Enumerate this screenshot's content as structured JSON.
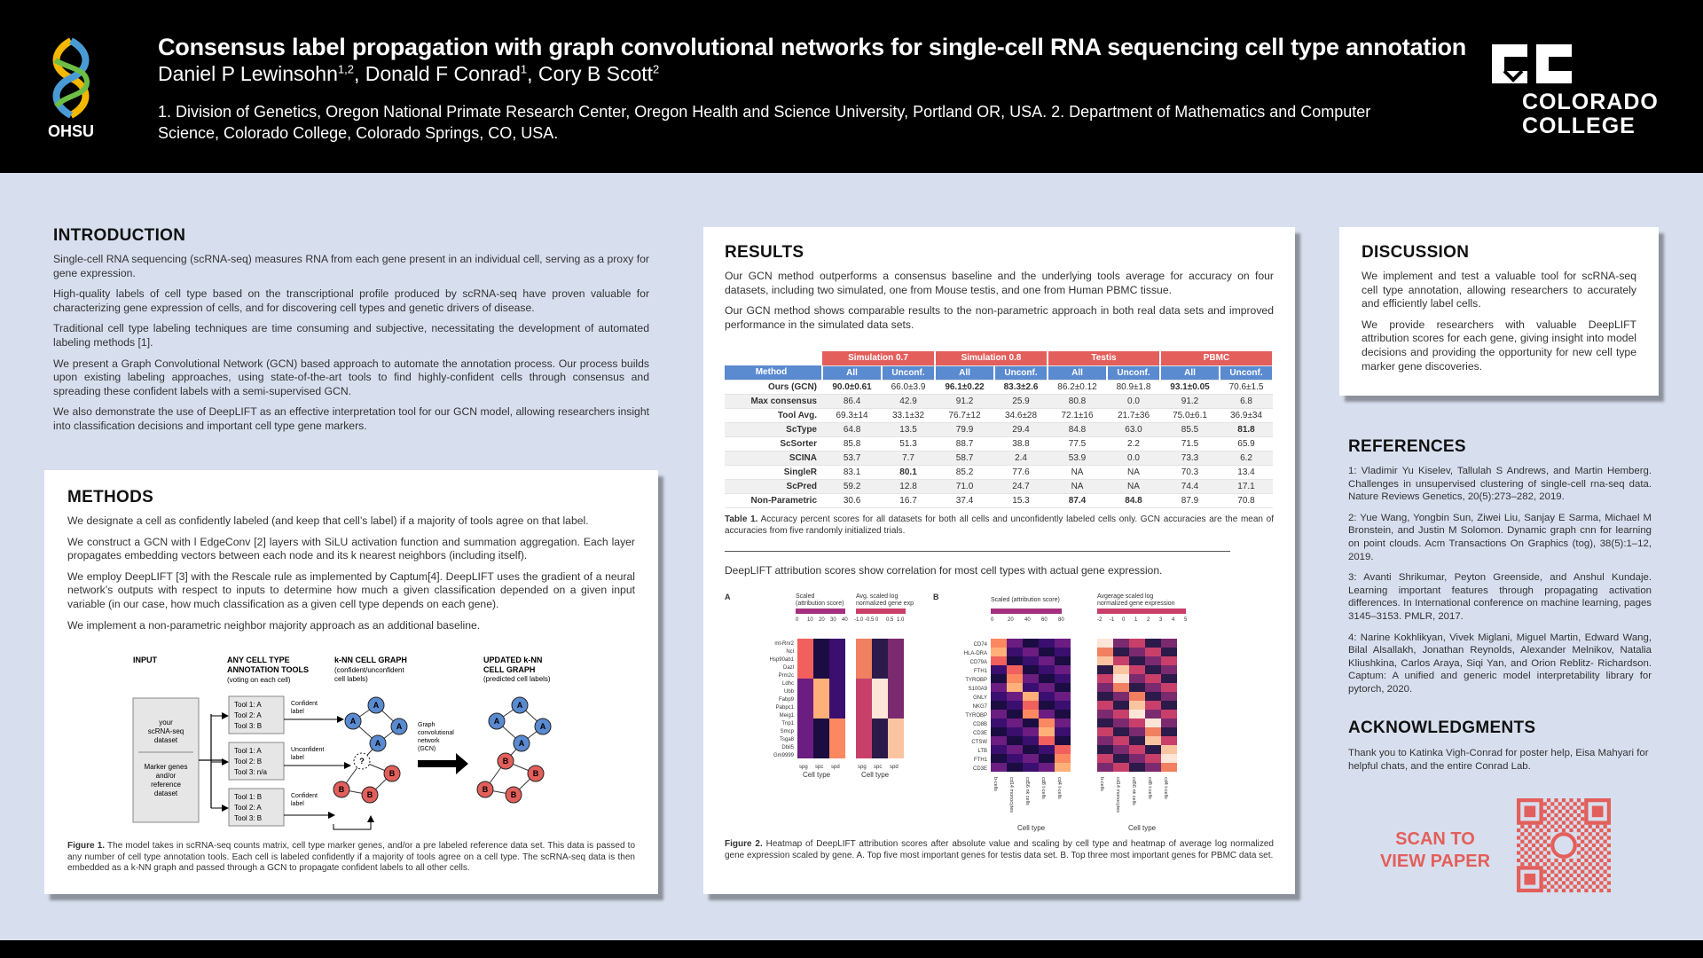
{
  "header": {
    "title": "Consensus label propagation with graph convolutional networks for single-cell RNA sequencing cell type annotation",
    "authors": [
      {
        "name": "Daniel P Lewinsohn",
        "sup": "1,2",
        "sep": ", "
      },
      {
        "name": "Donald F Conrad",
        "sup": "1",
        "sep": ", "
      },
      {
        "name": "Cory B Scott",
        "sup": "2",
        "sep": ""
      }
    ],
    "affiliations": "1. Division of Genetics, Oregon National Primate Research Center, Oregon Health and Science University, Portland OR, USA. 2. Department of Mathematics and Computer Science, Colorado College, Colorado Springs, CO, USA.",
    "ohsu_label": "OHSU",
    "cc_line1": "COLORADO",
    "cc_line2": "COLLEGE",
    "icons": [
      "ohsu-logo-icon",
      "colorado-college-logo-icon"
    ]
  },
  "introduction": {
    "title": "INTRODUCTION",
    "paragraphs": [
      "Single-cell RNA sequencing (scRNA-seq) measures RNA from each gene present in an individual cell, serving as a proxy for gene expression.",
      "High-quality labels of cell type based on the transcriptional profile produced by scRNA-seq have proven valuable for characterizing gene expression of cells, and for discovering cell types and genetic drivers of disease.",
      "Traditional cell type labeling techniques are time consuming and subjective, necessitating the development of automated labeling methods [1].",
      "We present a Graph Convolutional Network (GCN) based approach to automate the annotation process. Our process builds upon existing labeling approaches, using state-of-the-art tools to find highly-confident cells through consensus and spreading these confident labels with a semi-supervised GCN.",
      "We also demonstrate the use of DeepLIFT as an effective interpretation tool for our GCN model, allowing researchers insight into classification decisions and important cell type gene markers."
    ]
  },
  "methods": {
    "title": "METHODS",
    "paragraphs": [
      "We designate a cell as confidently labeled (and keep that cell’s label) if a majority of tools agree on that label.",
      "We construct a GCN with l EdgeConv [2] layers with SiLU activation function and summation aggregation. Each layer propagates embedding vectors between each node and its k nearest neighbors (including itself).",
      "We employ DeepLIFT [3] with the Rescale rule as implemented by Captum[4]. DeepLIFT uses the gradient of a neural network’s outputs with respect to inputs to determine how much a given classification depended on a given input variable (in our case, how much classification as a given cell type depends on each gene).",
      "We implement a non-parametric neighbor majority approach as an additional baseline."
    ],
    "figure": {
      "col_input": "INPUT",
      "col_tools": "ANY CELL TYPE",
      "col_tools2": "ANNOTATION TOOLS",
      "col_tools_sub": "(voting on each cell)",
      "col_knn": "k-NN CELL GRAPH",
      "col_knn_sub": "(confident/unconfident",
      "col_knn_sub2": "cell labels)",
      "col_upd": "UPDATED k-NN",
      "col_upd2": "CELL GRAPH",
      "col_upd_sub": "(predicted cell labels)",
      "input_lines": [
        "your",
        "scRNA-seq",
        "dataset"
      ],
      "input_lines2": [
        "Marker genes",
        "and/or",
        "reference",
        "dataset"
      ],
      "tool_box1": [
        "Tool 1: A",
        "Tool 2: A",
        "Tool 3: B"
      ],
      "tool_box2": [
        "Tool 1: A",
        "Tool 2: B",
        "Tool 3: n/a"
      ],
      "tool_box3": [
        "Tool 1: B",
        "Tool 2: A",
        "Tool 3: B"
      ],
      "lbl_conf": "Confident",
      "lbl_label": "label",
      "lbl_unconf": "Unconfident",
      "gcn_label": [
        "Graph",
        "convolutional",
        "network",
        "(GCN)"
      ],
      "node_a": "A",
      "node_b": "B",
      "node_q": "?"
    },
    "caption_label": "Figure 1.",
    "caption": " The model takes in scRNA-seq counts matrix, cell type marker genes, and/or a pre labeled reference data set. This data is passed to any number of cell type annotation tools. Each cell is labeled confidently if a majority of tools agree on a cell type. The scRNA-seq data is then embedded as a k-NN graph and passed through a GCN to propagate confident labels to all other cells."
  },
  "results": {
    "title": "RESULTS",
    "paragraphs": [
      "Our GCN method outperforms a consensus baseline and the underlying tools average for accuracy on four datasets, including two simulated, one from Mouse testis, and one from Human PBMC tissue.",
      "Our GCN method shows comparable results to the non-parametric approach in both real data sets and improved performance in the simulated data sets."
    ],
    "table": {
      "groups": [
        "Simulation 0.7",
        "Simulation 0.8",
        "Testis",
        "PBMC"
      ],
      "method_header": "Method",
      "sub_headers": [
        "All",
        "Unconf.",
        "All",
        "Unconf.",
        "All",
        "Unconf.",
        "All",
        "Unconf."
      ],
      "rows": [
        {
          "method": "Ours (GCN)",
          "values": [
            "90.0±0.61",
            "66.0±3.9",
            "96.1±0.22",
            "83.3±2.6",
            "86.2±0.12",
            "80.9±1.8",
            "93.1±0.05",
            "70.6±1.5"
          ],
          "bold": [
            0,
            2,
            3,
            6
          ]
        },
        {
          "method": "Max consensus",
          "values": [
            "86.4",
            "42.9",
            "91.2",
            "25.9",
            "80.8",
            "0.0",
            "91.2",
            "6.8"
          ],
          "bold": []
        },
        {
          "method": "Tool Avg.",
          "values": [
            "69.3±14",
            "33.1±32",
            "76.7±12",
            "34.6±28",
            "72.1±16",
            "21.7±36",
            "75.0±6.1",
            "36.9±34"
          ],
          "bold": []
        },
        {
          "method": "ScType",
          "values": [
            "64.8",
            "13.5",
            "79.9",
            "29.4",
            "84.8",
            "63.0",
            "85.5",
            "81.8"
          ],
          "bold": [
            7
          ]
        },
        {
          "method": "ScSorter",
          "values": [
            "85.8",
            "51.3",
            "88.7",
            "38.8",
            "77.5",
            "2.2",
            "71.5",
            "65.9"
          ],
          "bold": []
        },
        {
          "method": "SCINA",
          "values": [
            "53.7",
            "7.7",
            "58.7",
            "2.4",
            "53.9",
            "0.0",
            "73.3",
            "6.2"
          ],
          "bold": []
        },
        {
          "method": "SingleR",
          "values": [
            "83.1",
            "80.1",
            "85.2",
            "77.6",
            "NA",
            "NA",
            "70.3",
            "13.4"
          ],
          "bold": [
            1
          ]
        },
        {
          "method": "ScPred",
          "values": [
            "59.2",
            "12.8",
            "71.0",
            "24.7",
            "NA",
            "NA",
            "74.4",
            "17.1"
          ],
          "bold": []
        },
        {
          "method": "Non-Parametric",
          "values": [
            "30.6",
            "16.7",
            "37.4",
            "15.3",
            "87.4",
            "84.8",
            "87.9",
            "70.8"
          ],
          "bold": [
            4,
            5
          ]
        }
      ]
    },
    "table_caption_label": "Table 1.",
    "table_caption": " Accuracy percent scores for all datasets for both all cells and unconfidently labeled cells only. GCN accuracies are the mean of accuracies from five randomly initialized trials.",
    "deeplift_text": "DeepLIFT attribution scores show correlation for most cell types with actual gene expression.",
    "fig2": {
      "panel_a": "A",
      "panel_b": "B",
      "a_scale1": [
        "Scaled",
        "(attribution score)"
      ],
      "a_ticks1": [
        "0",
        "10",
        "20",
        "30",
        "40"
      ],
      "a_scale2": [
        "Avg. scaled log",
        "normalized gene exp"
      ],
      "a_ticks2": [
        "-1.0",
        "-0.5",
        "0",
        "0.5",
        "1.0"
      ],
      "b_scale1": [
        "Scaled (attribution score)"
      ],
      "b_ticks1": [
        "0",
        "20",
        "40",
        "60",
        "80"
      ],
      "b_scale2": [
        "Avgerage scaled log",
        "normalized gene expression"
      ],
      "b_ticks2": [
        "-2",
        "-1",
        "0",
        "1",
        "2",
        "3",
        "4",
        "5"
      ],
      "a_genes": [
        "mt-Rnr2",
        "Ncl",
        "Hsp90ab1",
        "Dazl",
        "Prm2c",
        "Ldhc",
        "Ubb",
        "Fabp9",
        "Pabpc1",
        "Meig1",
        "Tnp1",
        "Smcp",
        "Tsga8",
        "Dbil5",
        "Gm9999"
      ],
      "b_genes": [
        "CD74",
        "HLA-DRA",
        "CD79A",
        "FTH1",
        "TYROBP",
        "S100A9",
        "GNLY",
        "NKG7",
        "TYROBP",
        "CD8B",
        "CD3E",
        "CTSW",
        "LTB",
        "FTH1",
        "CD3E"
      ],
      "a_types": [
        "spg",
        "spc",
        "spd"
      ],
      "b_types": [
        "b-cells",
        "cd14 monocytes",
        "cd56 nk cells",
        "cd8 t-cells",
        "cd4 t-cells"
      ],
      "xlabel": "Cell type"
    },
    "fig2_caption_label": "Figure 2.",
    "fig2_caption": " Heatmap of DeepLIFT attribution scores after absolute value and scaling by cell type and heatmap of average log normalized gene expression scaled by gene. A. Top five most important genes for testis data set. B. Top three most important genes for PBMC data set."
  },
  "discussion": {
    "title": "DISCUSSION",
    "paragraphs": [
      "We implement and test a valuable tool for scRNA-seq cell type annotation, allowing researchers to accurately and efficiently label cells.",
      "We provide researchers with valuable DeepLIFT attribution scores for each gene, giving insight into model decisions and providing the opportunity for new cell type marker gene discoveries."
    ]
  },
  "references": {
    "title": "REFERENCES",
    "items": [
      "1: Vladimir Yu Kiselev, Tallulah S Andrews, and Martin Hemberg. Challenges in unsupervised clustering of single-cell rna-seq data. Nature Reviews Genetics, 20(5):273–282, 2019.",
      "2: Yue Wang, Yongbin Sun, Ziwei Liu, Sanjay E Sarma, Michael M Bronstein, and Justin M Solomon. Dynamic graph cnn for learning on point clouds. Acm Transactions On Graphics (tog), 38(5):1–12, 2019.",
      "3: Avanti Shrikumar, Peyton Greenside, and Anshul Kundaje. Learning important features through propagating activation differences. In International conference on machine learning, pages 3145–3153. PMLR, 2017.",
      "4: Narine Kokhlikyan, Vivek Miglani, Miguel Martin, Edward Wang, Bilal Alsallakh, Jonathan Reynolds, Alexander Melnikov, Natalia Kliushkina, Carlos Araya, Siqi Yan, and Orion Reblitz- Richardson. Captum: A unified and generic model interpretability library for pytorch, 2020."
    ]
  },
  "acknowledgments": {
    "title": "ACKNOWLEDGMENTS",
    "text": "Thank you to Katinka Vigh-Conrad for poster help, Eisa Mahyari for helpful chats, and the entire Conrad Lab."
  },
  "scan": {
    "line1": "SCAN TO",
    "line2": "VIEW PAPER",
    "icon": "qr-code-icon"
  },
  "colors": {
    "header_bg": "#000000",
    "page_bg": "#d7dfee",
    "accent_red": "#e35f5b",
    "accent_blue": "#5a8ad0"
  }
}
